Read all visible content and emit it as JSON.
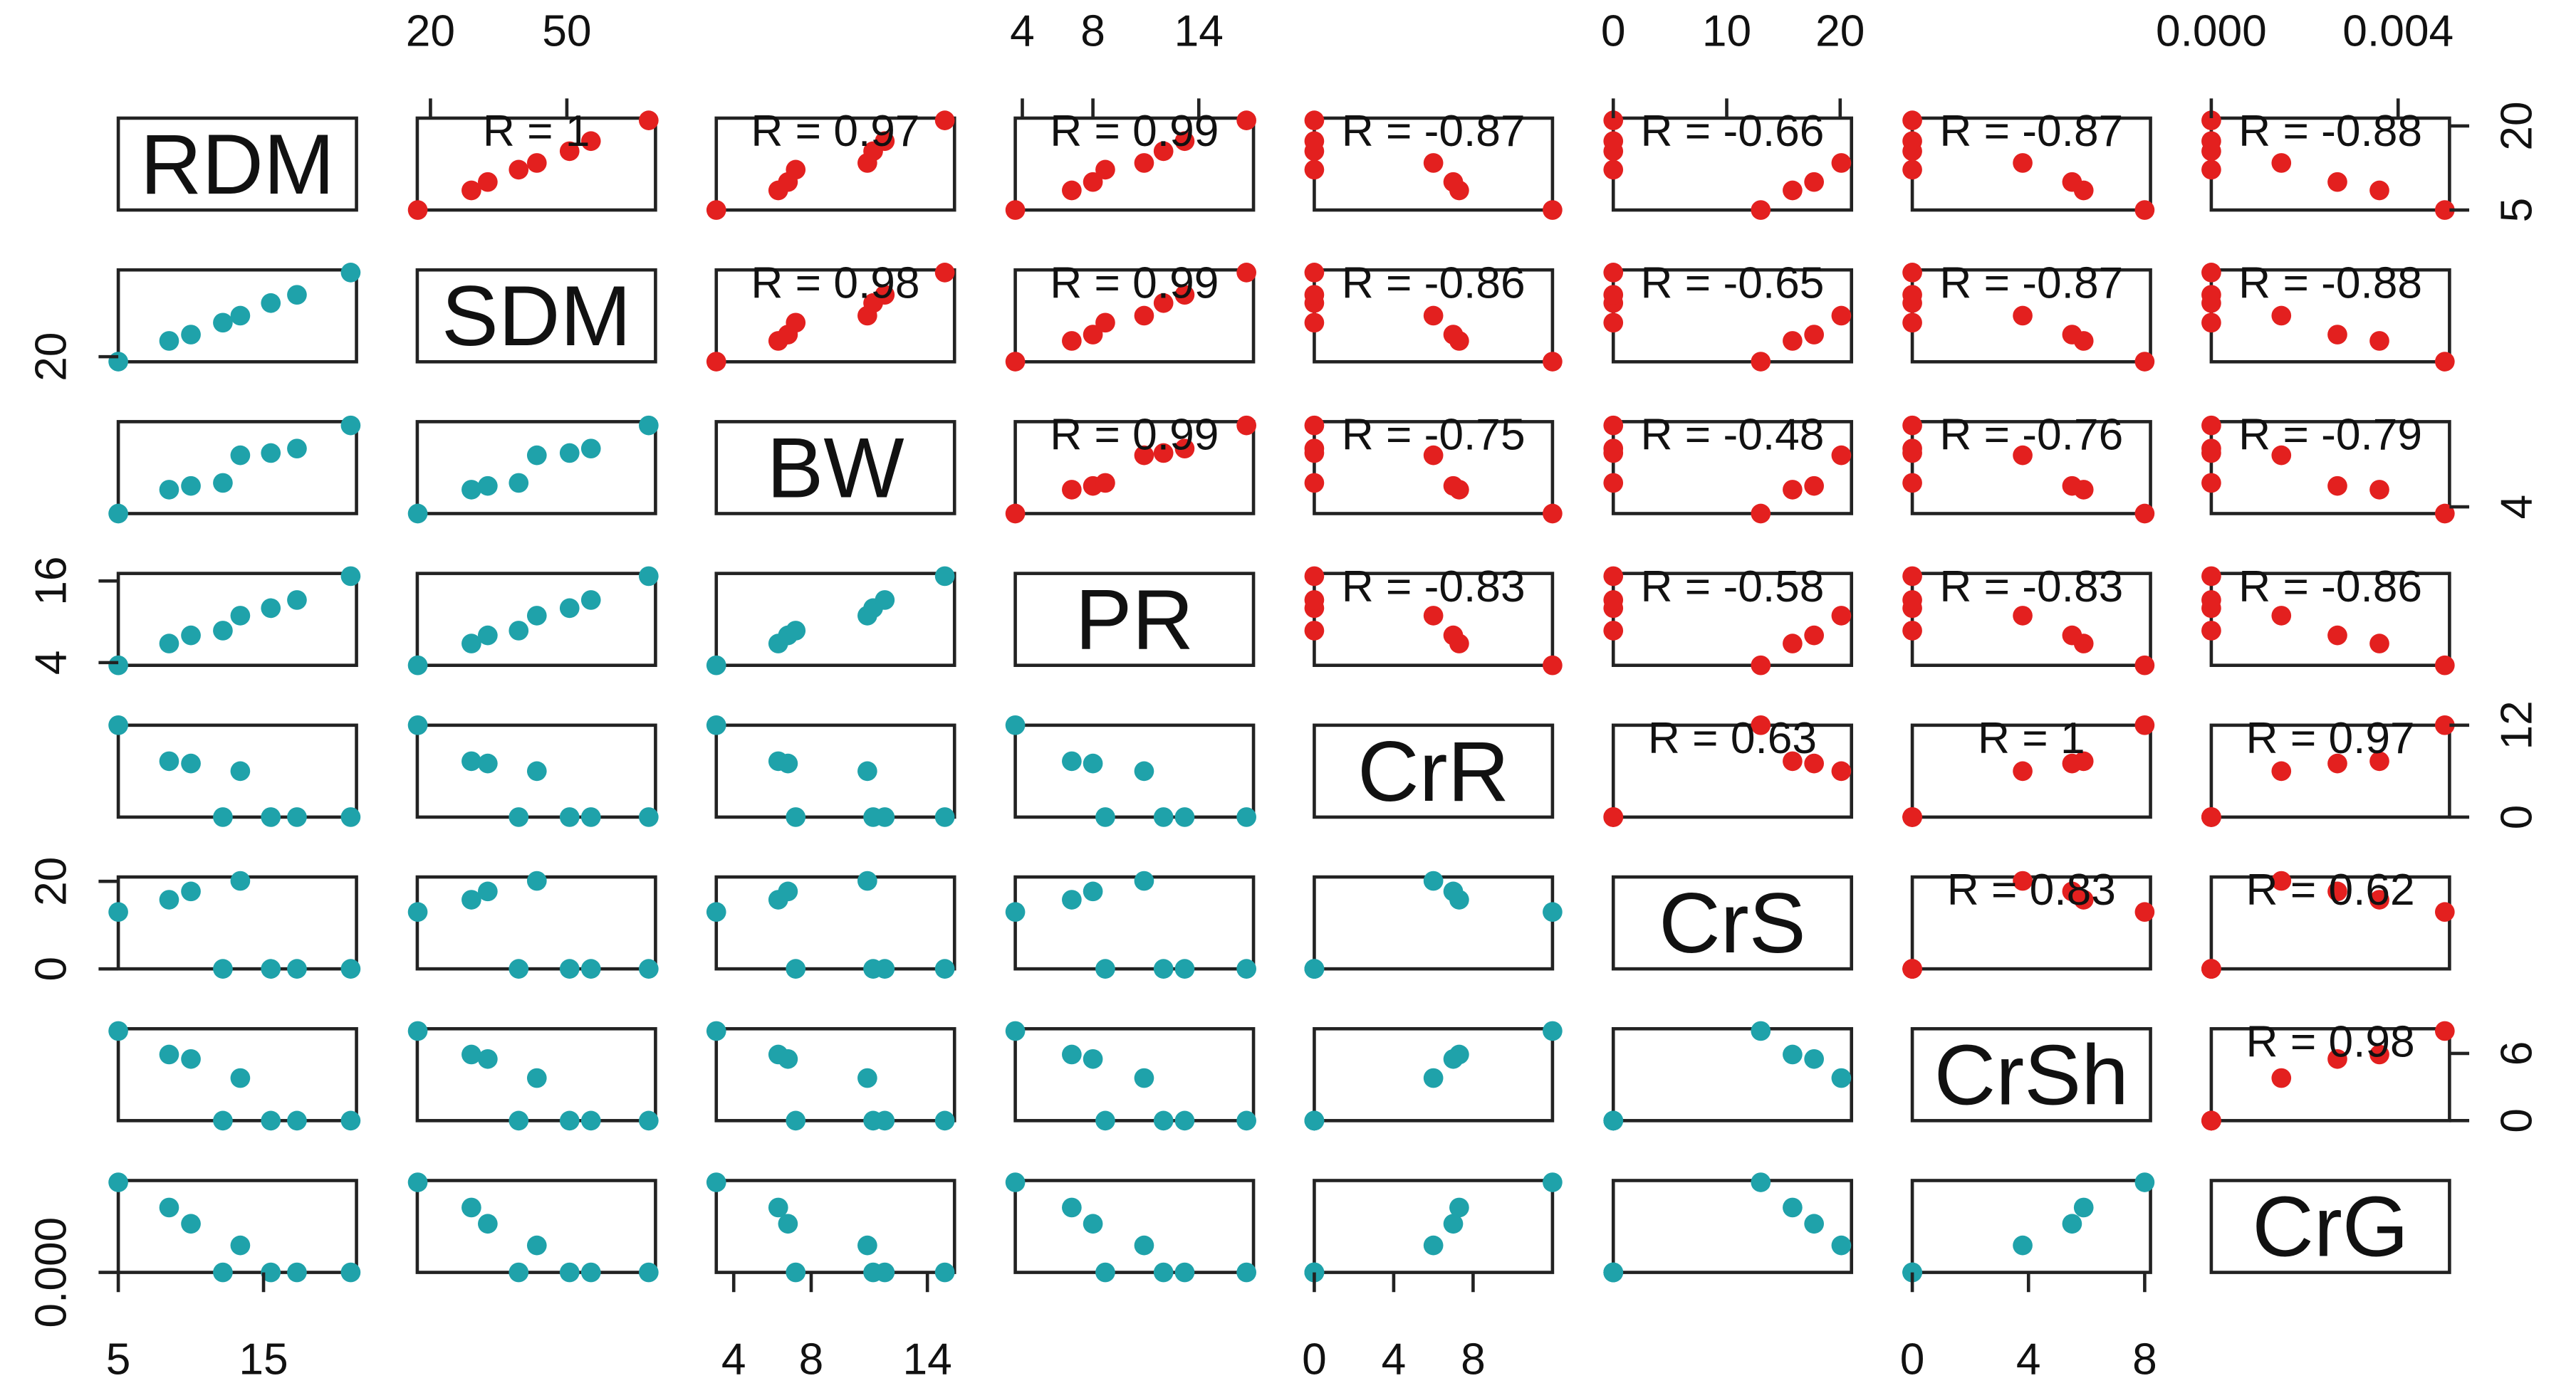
{
  "chart_data": {
    "type": "scatter_matrix",
    "lower_color": "#1fa2aa",
    "upper_color": "#e3201f",
    "variables": [
      {
        "name": "RDM",
        "values": [
          5,
          8.5,
          10,
          12.2,
          13.4,
          15.5,
          17.3,
          21
        ],
        "lim": [
          5,
          21.4
        ],
        "xticks": [
          5,
          15
        ],
        "yticks": [
          5,
          20
        ]
      },
      {
        "name": "SDM",
        "values": [
          17.2,
          29,
          32.6,
          39.4,
          43.4,
          50.6,
          55.3,
          68
        ],
        "lim": [
          17.1,
          69.5
        ],
        "xticks": [
          20,
          50
        ],
        "yticks": [
          20
        ]
      },
      {
        "name": "BW",
        "values": [
          3.1,
          6.3,
          6.8,
          7.2,
          10.9,
          11.2,
          11.8,
          14.9
        ],
        "lim": [
          3.1,
          15.4
        ],
        "xticks": [
          4,
          8,
          14
        ],
        "yticks": [
          4
        ]
      },
      {
        "name": "PR",
        "values": [
          3.6,
          6.8,
          8,
          8.7,
          10.9,
          12,
          13.2,
          16.7
        ],
        "lim": [
          3.6,
          17.1
        ],
        "xticks": [
          4,
          8,
          14
        ],
        "yticks": [
          4,
          16
        ]
      },
      {
        "name": "CrR",
        "values": [
          12,
          7.3,
          7,
          0,
          6,
          0,
          0,
          0
        ],
        "lim": [
          0,
          12
        ],
        "xticks": [
          0,
          4,
          8
        ],
        "yticks": [
          0,
          12
        ]
      },
      {
        "name": "CrS",
        "values": [
          13,
          15.8,
          17.7,
          0,
          20.1,
          0,
          0,
          0
        ],
        "lim": [
          0,
          21
        ],
        "xticks": [
          0,
          10,
          20
        ],
        "yticks": [
          0,
          20
        ]
      },
      {
        "name": "CrSh",
        "values": [
          8,
          5.9,
          5.5,
          0,
          3.8,
          0,
          0,
          0
        ],
        "lim": [
          0,
          8.2
        ],
        "xticks": [
          0,
          4,
          8
        ],
        "yticks": [
          0,
          6
        ]
      },
      {
        "name": "CrG",
        "values": [
          0.005,
          0.0036,
          0.0027,
          0,
          0.0015,
          0,
          0,
          0
        ],
        "lim": [
          0,
          0.0051
        ],
        "xticks": [
          {
            "value": 0,
            "label": "0.000"
          },
          {
            "value": 0.004,
            "label": "0.004"
          }
        ],
        "yticks": [
          {
            "value": 0,
            "label": "0.000"
          }
        ]
      }
    ],
    "correlation_labels": [
      [
        "R = 1",
        "R = 0.97",
        "R = 0.99",
        "R = -0.87",
        "R = -0.66",
        "R = -0.87",
        "R = -0.88"
      ],
      [
        "R = 0.98",
        "R = 0.99",
        "R = -0.86",
        "R = -0.65",
        "R = -0.87",
        "R = -0.88"
      ],
      [
        "R = 0.99",
        "R = -0.75",
        "R = -0.48",
        "R = -0.76",
        "R = -0.79"
      ],
      [
        "R = -0.83",
        "R = -0.58",
        "R = -0.83",
        "R = -0.86"
      ],
      [
        "R = 0.63",
        "R = 1",
        "R = 0.97"
      ],
      [
        "R = 0.83",
        "R = 0.62"
      ],
      [
        "R = 0.98"
      ]
    ]
  }
}
